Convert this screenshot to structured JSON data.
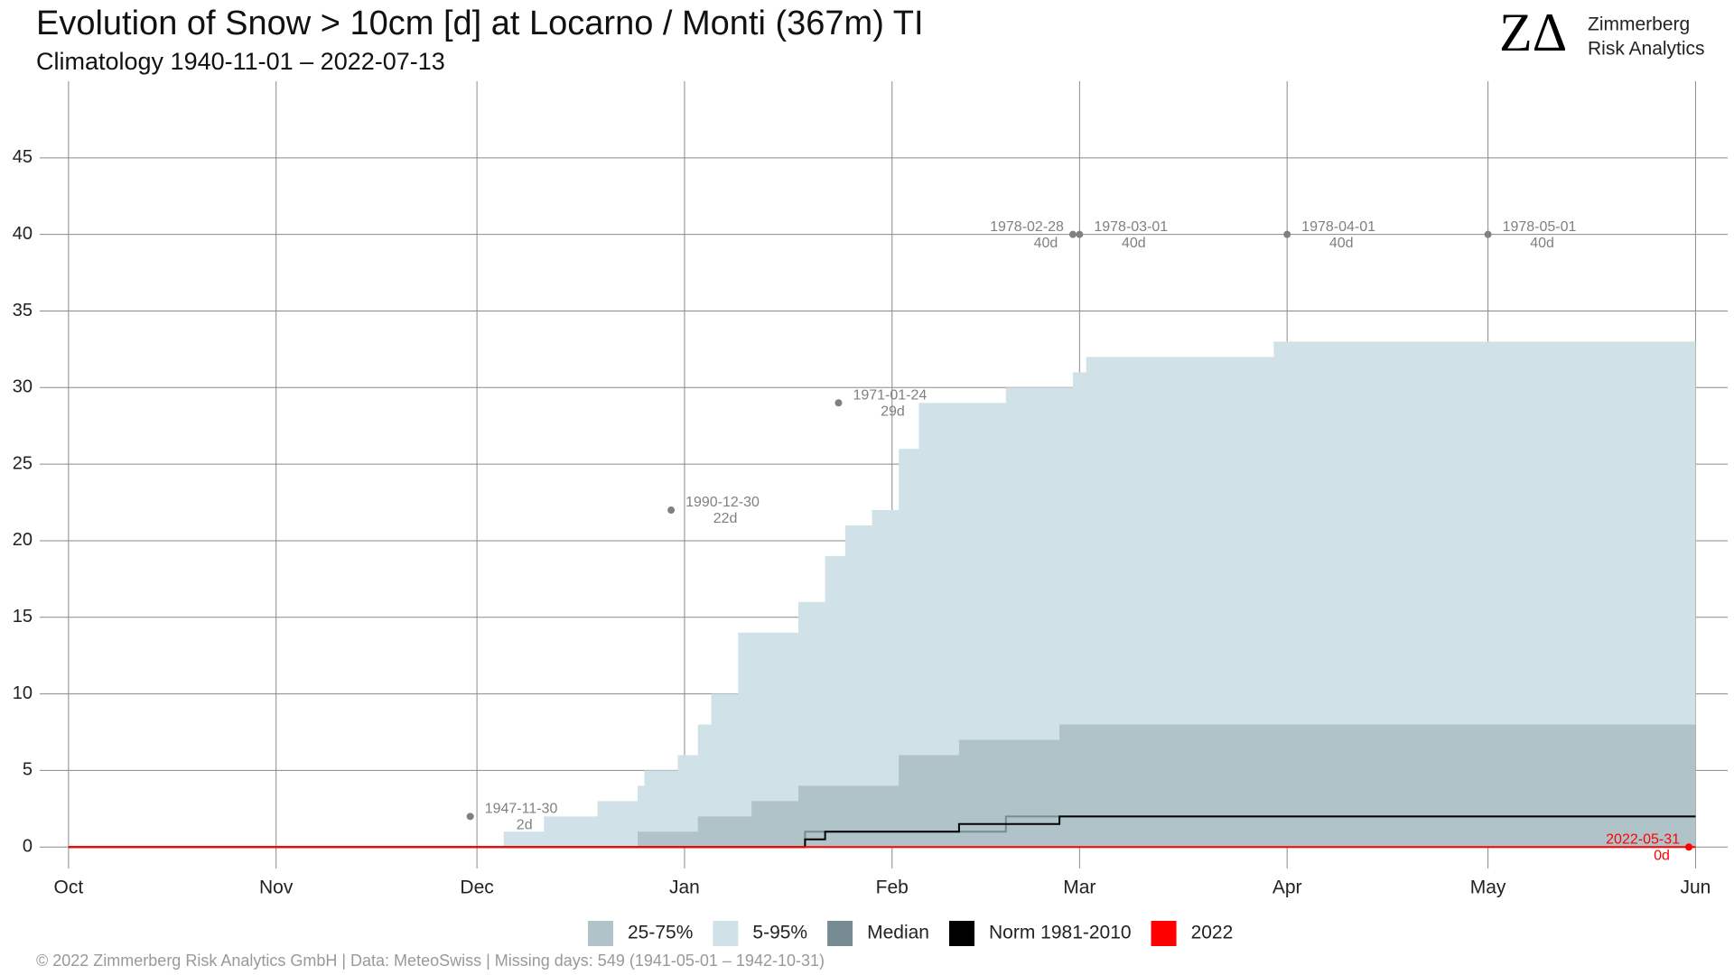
{
  "chart_data": {
    "type": "step-area",
    "title": "Evolution of Snow > 10cm [d] at Locarno / Monti (367m) TI",
    "subtitle": "Climatology 1940-11-01 – 2022-07-13",
    "logo": {
      "mark": "ZΔ",
      "line1": "Zimmerberg",
      "line2": "Risk Analytics"
    },
    "footer": "©  2022 Zimmerberg Risk Analytics GmbH | Data: MeteoSwiss | Missing days: 549 (1941-05-01 – 1942-10-31)",
    "x": [
      0,
      65,
      71,
      79,
      85,
      86,
      88,
      91,
      94,
      96,
      100,
      102,
      109,
      110,
      113,
      116,
      120,
      124,
      127,
      133,
      140,
      145,
      148,
      150,
      152,
      159,
      164,
      171,
      180,
      243
    ],
    "xlim": [
      -4.3,
      247.8
    ],
    "xticks": [
      {
        "value": 0,
        "label": "Oct"
      },
      {
        "value": 31,
        "label": "Nov"
      },
      {
        "value": 61,
        "label": "Dec"
      },
      {
        "value": 92,
        "label": "Jan"
      },
      {
        "value": 123,
        "label": "Feb"
      },
      {
        "value": 151,
        "label": "Mar"
      },
      {
        "value": 182,
        "label": "Apr"
      },
      {
        "value": 212,
        "label": "May"
      },
      {
        "value": 243,
        "label": "Jun"
      }
    ],
    "ylim": [
      -1.4,
      50
    ],
    "yticks": [
      0,
      5,
      10,
      15,
      20,
      25,
      30,
      35,
      40,
      45
    ],
    "grid": true,
    "series": [
      {
        "name": "5-95%",
        "color": "#d0e2e8",
        "style": "area",
        "values": [
          0,
          1,
          2,
          3,
          4,
          5,
          5,
          6,
          8,
          10,
          14,
          14,
          16,
          16,
          19,
          21,
          22,
          26,
          29,
          29,
          30,
          30,
          30,
          31,
          32,
          32,
          32,
          32,
          33,
          33
        ]
      },
      {
        "name": "25-75%",
        "color": "#b0c3c9",
        "style": "area",
        "values": [
          0,
          0,
          0,
          0,
          1,
          1,
          1,
          1,
          2,
          2,
          2,
          3,
          4,
          4,
          4,
          4,
          4,
          6,
          6,
          7,
          7,
          7,
          8,
          8,
          8,
          8,
          8,
          8,
          8,
          8
        ]
      },
      {
        "name": "Median",
        "color": "#778b93",
        "style": "line",
        "values": [
          0,
          0,
          0,
          0,
          0,
          0,
          0,
          0,
          0,
          0,
          0,
          0,
          0,
          1,
          1,
          1,
          1,
          1,
          1,
          1,
          2,
          2,
          2,
          2,
          2,
          2,
          2,
          2,
          2,
          2
        ]
      },
      {
        "name": "Norm 1981-2010",
        "color": "#000000",
        "style": "line",
        "values": [
          0,
          0,
          0,
          0,
          0,
          0,
          0,
          0,
          0,
          0,
          0,
          0,
          0,
          0.5,
          1,
          1,
          1,
          1,
          1,
          1.5,
          1.5,
          1.5,
          2,
          2,
          2,
          2,
          2,
          2,
          2,
          2
        ]
      },
      {
        "name": "2022",
        "color": "#ff0000",
        "style": "line",
        "values": [
          0,
          0,
          0,
          0,
          0,
          0,
          0,
          0,
          0,
          0,
          0,
          0,
          0,
          0,
          0,
          0,
          0,
          0,
          0,
          0,
          0,
          0,
          0,
          0,
          0,
          0,
          0,
          0,
          0,
          0
        ]
      }
    ],
    "annotations": [
      {
        "label": "1947-11-30",
        "x": 60,
        "y": 2,
        "value_label": "2d",
        "color": "#808080"
      },
      {
        "label": "1990-12-30",
        "x": 90,
        "y": 22,
        "value_label": "22d",
        "color": "#808080"
      },
      {
        "label": "1971-01-24",
        "x": 115,
        "y": 29,
        "value_label": "29d",
        "color": "#808080"
      },
      {
        "label": "1978-02-28",
        "x": 150,
        "y": 40,
        "value_label": "40d",
        "color": "#808080"
      },
      {
        "label": "1978-03-01",
        "x": 151,
        "y": 40,
        "value_label": "40d",
        "color": "#808080"
      },
      {
        "label": "1978-04-01",
        "x": 182,
        "y": 40,
        "value_label": "40d",
        "color": "#808080"
      },
      {
        "label": "1978-05-01",
        "x": 212,
        "y": 40,
        "value_label": "40d",
        "color": "#808080"
      },
      {
        "label": "2022-05-31",
        "x": 242,
        "y": 0,
        "value_label": "0d",
        "color": "#ff0000"
      }
    ]
  }
}
